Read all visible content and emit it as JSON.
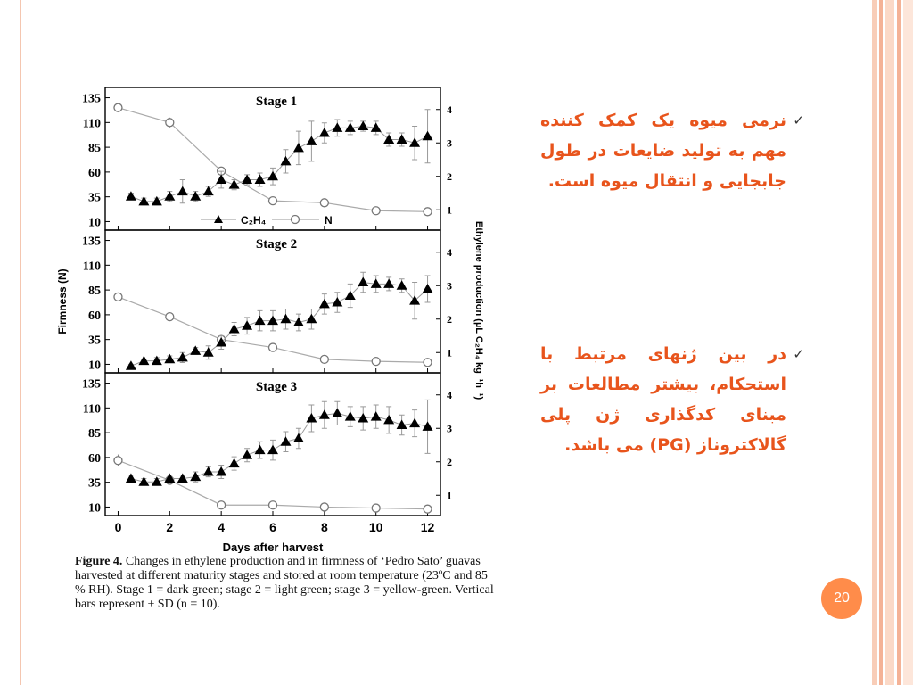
{
  "colors": {
    "accent": "#e8541c",
    "badge": "#ff8c4a",
    "stripe": "#f6b9a0"
  },
  "slide": {
    "page_number": "20",
    "bullets": [
      {
        "icon": "check-icon",
        "text": "نرمی میوه یک کمک کننده مهم به تولید ضایعات در طول جابجایی  و انتقال میوه است."
      },
      {
        "icon": "check-icon",
        "text": "در بین ژنهای مرتبط با استحکام، بیشتر مطالعات بر مبنای کدگذاری ژن پلی گالاکتروناز (PG) می باشد."
      }
    ]
  },
  "figure": {
    "caption_lead": "Figure 4.",
    "caption_text": "Changes in ethylene production and in firmness of ‘Pedro Sato’ guavas harvested at different maturity stages and stored at room temperature (23ºC and 85 % RH). Stage 1 = dark green; stage 2 = light green; stage 3 = yellow-green. Vertical bars represent ± SD (n = 10)."
  },
  "chart_data": {
    "type": "line",
    "xlabel": "Days after harvest",
    "ylabel_left": "Firmness (N)",
    "ylabel_right": "Ethylene production (µL C₂H₄ kg⁻¹h⁻¹)",
    "xlim": [
      -0.5,
      12.5
    ],
    "ylim_left": [
      5,
      140
    ],
    "ylim_right": [
      0.5,
      4.5
    ],
    "xticks": [
      0,
      2,
      4,
      6,
      8,
      10,
      12
    ],
    "yticks_left": [
      10,
      35,
      60,
      85,
      110,
      135
    ],
    "yticks_right": [
      1,
      2,
      3,
      4
    ],
    "legend": {
      "placement": "bottom-center",
      "ethylene": "C₂H₄",
      "firmness": "N"
    },
    "panels": [
      {
        "title": "Stage 1",
        "firmness": {
          "x": [
            0,
            2,
            4,
            6,
            8,
            10,
            12
          ],
          "y": [
            125,
            110,
            61,
            31,
            29,
            21,
            20
          ],
          "err": [
            3,
            5,
            3,
            2,
            2,
            1,
            1
          ]
        },
        "ethylene": {
          "x": [
            0.5,
            1,
            1.5,
            2,
            2.5,
            3,
            3.5,
            4,
            4.5,
            5,
            5.5,
            6,
            6.5,
            7,
            7.5,
            8,
            8.5,
            9,
            9.5,
            10,
            10.5,
            11,
            11.5,
            12
          ],
          "y": [
            1.4,
            1.25,
            1.25,
            1.4,
            1.55,
            1.4,
            1.55,
            1.9,
            1.75,
            1.9,
            1.9,
            2.0,
            2.45,
            2.85,
            3.05,
            3.3,
            3.45,
            3.45,
            3.5,
            3.45,
            3.1,
            3.1,
            3.0,
            3.2
          ],
          "err": [
            0.1,
            0.1,
            0.1,
            0.15,
            0.35,
            0.15,
            0.15,
            0.25,
            0.15,
            0.15,
            0.2,
            0.25,
            0.35,
            0.5,
            0.6,
            0.3,
            0.25,
            0.2,
            0.15,
            0.2,
            0.2,
            0.2,
            0.5,
            0.8
          ]
        }
      },
      {
        "title": "Stage 2",
        "firmness": {
          "x": [
            0,
            2,
            4,
            6,
            8,
            10,
            12
          ],
          "y": [
            78,
            58,
            35,
            27,
            15,
            13,
            12
          ],
          "err": [
            4,
            3,
            3,
            4,
            2,
            1,
            1
          ]
        },
        "ethylene": {
          "x": [
            0.5,
            1,
            1.5,
            2,
            2.5,
            3,
            3.5,
            4,
            4.5,
            5,
            5.5,
            6,
            6.5,
            7,
            7.5,
            8,
            8.5,
            9,
            9.5,
            10,
            10.5,
            11,
            11.5,
            12
          ],
          "y": [
            0.6,
            0.75,
            0.75,
            0.8,
            0.85,
            1.05,
            1.0,
            1.3,
            1.7,
            1.8,
            1.95,
            1.95,
            2.0,
            1.9,
            2.0,
            2.45,
            2.5,
            2.7,
            3.1,
            3.05,
            3.05,
            3.0,
            2.55,
            2.9
          ],
          "err": [
            0.05,
            0.05,
            0.1,
            0.1,
            0.15,
            0.1,
            0.2,
            0.2,
            0.2,
            0.25,
            0.3,
            0.3,
            0.3,
            0.25,
            0.3,
            0.3,
            0.3,
            0.35,
            0.3,
            0.25,
            0.2,
            0.2,
            0.55,
            0.4
          ]
        }
      },
      {
        "title": "Stage 3",
        "firmness": {
          "x": [
            0,
            2,
            4,
            6,
            8,
            10,
            12
          ],
          "y": [
            57,
            37,
            12,
            12,
            10,
            9,
            8
          ],
          "err": [
            6,
            4,
            1,
            2,
            1,
            1,
            1
          ]
        },
        "ethylene": {
          "x": [
            0.5,
            1,
            1.5,
            2,
            2.5,
            3,
            3.5,
            4,
            4.5,
            5,
            5.5,
            6,
            6.5,
            7,
            7.5,
            8,
            8.5,
            9,
            9.5,
            10,
            10.5,
            11,
            11.5,
            12
          ],
          "y": [
            1.5,
            1.4,
            1.4,
            1.5,
            1.5,
            1.55,
            1.7,
            1.7,
            1.95,
            2.2,
            2.35,
            2.35,
            2.6,
            2.7,
            3.3,
            3.4,
            3.45,
            3.35,
            3.3,
            3.35,
            3.25,
            3.1,
            3.15,
            3.05
          ],
          "err": [
            0.1,
            0.1,
            0.1,
            0.1,
            0.1,
            0.15,
            0.15,
            0.2,
            0.2,
            0.2,
            0.25,
            0.3,
            0.3,
            0.3,
            0.4,
            0.4,
            0.35,
            0.3,
            0.35,
            0.35,
            0.4,
            0.3,
            0.4,
            0.8
          ]
        }
      }
    ]
  }
}
